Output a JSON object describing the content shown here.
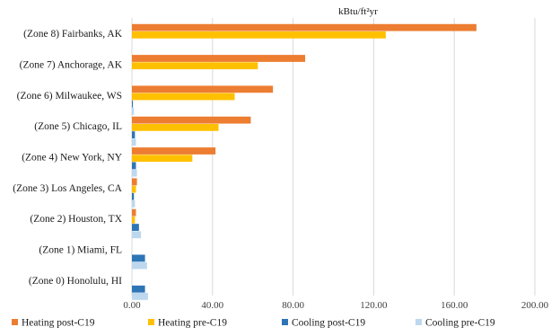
{
  "chart_data": {
    "type": "bar",
    "orientation": "horizontal",
    "unit": "kBtu/ft²yr",
    "categories": [
      "(Zone 8) Fairbanks, AK",
      "(Zone 7) Anchorage, AK",
      "(Zone 6) Milwaukee, WS",
      "(Zone 5) Chicago, IL",
      "(Zone 4) New York, NY",
      "(Zone 3) Los Angeles, CA",
      "(Zone 2) Houston, TX",
      "(Zone 1) Miami, FL",
      "(Zone 0) Honolulu, HI"
    ],
    "series": [
      {
        "name": "Heating post-C19",
        "color": "#ED7D31",
        "values": [
          171,
          86,
          70,
          59,
          41.5,
          2.5,
          2,
          0,
          0
        ]
      },
      {
        "name": "Heating pre-C19",
        "color": "#FFC000",
        "values": [
          126,
          62.5,
          51,
          43,
          30,
          2,
          1.5,
          0,
          0
        ]
      },
      {
        "name": "Cooling post-C19",
        "color": "#2E75B6",
        "values": [
          0,
          0,
          0.5,
          1.5,
          2,
          1,
          3.5,
          6.5,
          6.5
        ]
      },
      {
        "name": "Cooling pre-C19",
        "color": "#BDD7EE",
        "values": [
          0,
          0,
          1,
          2,
          2.5,
          1.5,
          4.5,
          7.5,
          8
        ]
      }
    ],
    "xlim": [
      0,
      200
    ],
    "xticks": [
      "0.00",
      "40.00",
      "80.00",
      "120.00",
      "160.00",
      "200.00"
    ],
    "xtick_values": [
      0,
      40,
      80,
      120,
      160,
      200
    ],
    "grid": true,
    "legend": "bottom"
  }
}
